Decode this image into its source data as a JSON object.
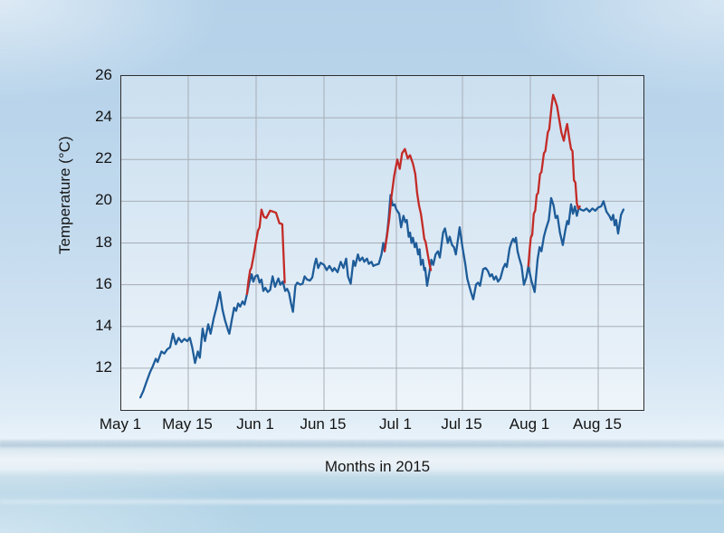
{
  "axes": {
    "y_label": "Temperature (°C)",
    "x_label": "Months in 2015"
  },
  "colors": {
    "blue_line": "#1e5c99",
    "red_line": "#c32b27",
    "grid": "#a8adb5",
    "frame": "#2e2e2e",
    "sky": "#b4d1e9",
    "water": "#b1d2e5"
  },
  "chart_data": {
    "type": "line",
    "title": "",
    "xlabel": "Months in 2015",
    "ylabel": "Temperature (°C)",
    "ylim": [
      10,
      26
    ],
    "y_tick_values": [
      26,
      24,
      22,
      20,
      18,
      16,
      14,
      12
    ],
    "x_tick_labels": [
      "May 1",
      "May 15",
      "Jun 1",
      "Jun 15",
      "Jul 1",
      "Jul 15",
      "Aug 1",
      "Aug 15"
    ],
    "x_tick_days": [
      0,
      14,
      31,
      45,
      61,
      75,
      92,
      106
    ],
    "x_unit": "days since May 1, 2015",
    "grid": true,
    "legend": false,
    "series": [
      {
        "name": "blue_series",
        "color": "#1e5c99",
        "points": [
          [
            4.0,
            10.6
          ],
          [
            4.6,
            10.9
          ],
          [
            5.2,
            11.3
          ],
          [
            6.0,
            11.8
          ],
          [
            6.6,
            12.1
          ],
          [
            7.2,
            12.45
          ],
          [
            7.6,
            12.3
          ],
          [
            8.4,
            12.8
          ],
          [
            9.0,
            12.7
          ],
          [
            9.6,
            12.9
          ],
          [
            10.2,
            13.0
          ],
          [
            10.8,
            13.65
          ],
          [
            11.4,
            13.15
          ],
          [
            12.0,
            13.45
          ],
          [
            12.6,
            13.25
          ],
          [
            13.2,
            13.4
          ],
          [
            13.8,
            13.3
          ],
          [
            14.4,
            13.45
          ],
          [
            15.0,
            13.0
          ],
          [
            15.7,
            12.25
          ],
          [
            16.4,
            12.8
          ],
          [
            16.9,
            12.5
          ],
          [
            17.6,
            13.9
          ],
          [
            18.2,
            13.3
          ],
          [
            19.0,
            14.1
          ],
          [
            19.6,
            13.65
          ],
          [
            20.4,
            14.4
          ],
          [
            21.0,
            14.85
          ],
          [
            21.9,
            15.65
          ],
          [
            22.6,
            14.8
          ],
          [
            23.2,
            14.3
          ],
          [
            24.0,
            13.8
          ],
          [
            24.3,
            13.65
          ],
          [
            24.9,
            14.3
          ],
          [
            25.5,
            14.9
          ],
          [
            26.0,
            14.75
          ],
          [
            26.5,
            15.1
          ],
          [
            27.0,
            14.95
          ],
          [
            27.6,
            15.2
          ],
          [
            28.1,
            15.05
          ],
          [
            28.7,
            15.55
          ],
          [
            29.3,
            16.1
          ],
          [
            29.9,
            16.5
          ],
          [
            30.3,
            16.15
          ],
          [
            30.8,
            16.4
          ],
          [
            31.3,
            16.45
          ],
          [
            31.7,
            16.1
          ],
          [
            32.1,
            16.25
          ],
          [
            32.5,
            15.7
          ],
          [
            32.9,
            15.85
          ],
          [
            33.4,
            15.65
          ],
          [
            33.9,
            15.75
          ],
          [
            34.4,
            16.4
          ],
          [
            34.9,
            15.9
          ],
          [
            35.6,
            16.3
          ],
          [
            36.0,
            16.0
          ],
          [
            36.5,
            16.15
          ],
          [
            37.0,
            15.7
          ],
          [
            37.4,
            15.8
          ],
          [
            37.8,
            15.6
          ],
          [
            38.2,
            15.1
          ],
          [
            38.6,
            14.7
          ],
          [
            39.1,
            15.95
          ],
          [
            39.5,
            16.1
          ],
          [
            40.1,
            16.0
          ],
          [
            40.6,
            16.05
          ],
          [
            41.0,
            16.4
          ],
          [
            41.5,
            16.25
          ],
          [
            42.1,
            16.2
          ],
          [
            42.6,
            16.35
          ],
          [
            43.1,
            17.0
          ],
          [
            43.4,
            17.25
          ],
          [
            43.8,
            16.8
          ],
          [
            44.3,
            17.05
          ],
          [
            45.0,
            16.95
          ],
          [
            45.6,
            16.7
          ],
          [
            46.2,
            16.9
          ],
          [
            46.9,
            16.65
          ],
          [
            47.3,
            16.8
          ],
          [
            48.0,
            16.6
          ],
          [
            48.7,
            17.1
          ],
          [
            49.3,
            16.8
          ],
          [
            49.9,
            17.25
          ],
          [
            50.3,
            16.4
          ],
          [
            50.9,
            16.05
          ],
          [
            51.5,
            17.15
          ],
          [
            51.9,
            16.9
          ],
          [
            52.5,
            17.45
          ],
          [
            52.9,
            17.15
          ],
          [
            53.5,
            17.3
          ],
          [
            53.9,
            17.1
          ],
          [
            54.5,
            17.25
          ],
          [
            54.9,
            17.0
          ],
          [
            55.5,
            17.1
          ],
          [
            55.9,
            16.9
          ],
          [
            56.4,
            16.95
          ],
          [
            57.1,
            17.0
          ],
          [
            57.7,
            17.45
          ],
          [
            58.1,
            18.0
          ],
          [
            58.4,
            17.6
          ],
          [
            59.0,
            18.55
          ],
          [
            59.3,
            19.2
          ],
          [
            59.7,
            20.3
          ],
          [
            60.2,
            19.8
          ],
          [
            60.6,
            19.85
          ],
          [
            61.0,
            19.6
          ],
          [
            61.6,
            19.4
          ],
          [
            62.0,
            18.75
          ],
          [
            62.5,
            19.3
          ],
          [
            62.9,
            19.0
          ],
          [
            63.2,
            19.1
          ],
          [
            63.6,
            18.3
          ],
          [
            63.9,
            18.5
          ],
          [
            64.2,
            18.0
          ],
          [
            64.5,
            18.25
          ],
          [
            64.9,
            17.8
          ],
          [
            65.2,
            18.0
          ],
          [
            65.6,
            17.45
          ],
          [
            65.9,
            17.7
          ],
          [
            66.2,
            16.95
          ],
          [
            66.6,
            17.2
          ],
          [
            66.9,
            16.7
          ],
          [
            67.1,
            16.8
          ],
          [
            67.5,
            15.95
          ],
          [
            68.0,
            16.6
          ],
          [
            68.4,
            17.2
          ],
          [
            68.8,
            16.95
          ],
          [
            69.3,
            17.45
          ],
          [
            69.8,
            17.6
          ],
          [
            70.2,
            17.3
          ],
          [
            70.9,
            18.5
          ],
          [
            71.3,
            18.7
          ],
          [
            71.9,
            18.0
          ],
          [
            72.3,
            18.3
          ],
          [
            72.8,
            17.9
          ],
          [
            73.2,
            17.8
          ],
          [
            73.6,
            17.45
          ],
          [
            74.4,
            18.75
          ],
          [
            75.0,
            17.8
          ],
          [
            75.7,
            17.0
          ],
          [
            76.2,
            16.3
          ],
          [
            76.6,
            16.0
          ],
          [
            77.2,
            15.6
          ],
          [
            77.7,
            15.3
          ],
          [
            78.4,
            16.0
          ],
          [
            78.9,
            16.1
          ],
          [
            79.4,
            15.95
          ],
          [
            80.2,
            16.75
          ],
          [
            80.8,
            16.8
          ],
          [
            81.4,
            16.65
          ],
          [
            81.9,
            16.4
          ],
          [
            82.4,
            16.5
          ],
          [
            82.9,
            16.25
          ],
          [
            83.4,
            16.4
          ],
          [
            83.9,
            16.15
          ],
          [
            84.5,
            16.3
          ],
          [
            85.2,
            16.8
          ],
          [
            85.7,
            17.0
          ],
          [
            86.1,
            16.85
          ],
          [
            86.8,
            17.75
          ],
          [
            87.3,
            18.05
          ],
          [
            87.7,
            18.2
          ],
          [
            88.1,
            18.05
          ],
          [
            88.4,
            18.25
          ],
          [
            88.8,
            17.6
          ],
          [
            89.2,
            17.3
          ],
          [
            89.8,
            16.9
          ],
          [
            90.4,
            16.0
          ],
          [
            91.0,
            16.35
          ],
          [
            91.5,
            16.9
          ],
          [
            92.2,
            16.2
          ],
          [
            92.9,
            15.65
          ],
          [
            93.5,
            17.2
          ],
          [
            93.9,
            17.8
          ],
          [
            94.3,
            17.6
          ],
          [
            94.8,
            18.3
          ],
          [
            95.2,
            18.65
          ],
          [
            95.8,
            19.1
          ],
          [
            96.3,
            20.15
          ],
          [
            96.8,
            19.8
          ],
          [
            97.2,
            19.2
          ],
          [
            97.6,
            19.3
          ],
          [
            98.1,
            18.5
          ],
          [
            98.7,
            17.9
          ],
          [
            99.2,
            18.6
          ],
          [
            99.6,
            19.05
          ],
          [
            99.9,
            18.9
          ],
          [
            100.4,
            19.85
          ],
          [
            100.8,
            19.4
          ],
          [
            101.2,
            19.75
          ],
          [
            101.6,
            19.3
          ],
          [
            102.0,
            19.7
          ],
          [
            102.4,
            19.6
          ],
          [
            103.0,
            19.55
          ],
          [
            103.6,
            19.65
          ],
          [
            104.2,
            19.5
          ],
          [
            104.8,
            19.65
          ],
          [
            105.4,
            19.55
          ],
          [
            106.0,
            19.7
          ],
          [
            106.6,
            19.75
          ],
          [
            107.1,
            20.0
          ],
          [
            107.7,
            19.5
          ],
          [
            108.3,
            19.3
          ],
          [
            108.7,
            19.1
          ],
          [
            109.1,
            19.35
          ],
          [
            109.4,
            18.85
          ],
          [
            109.7,
            19.1
          ],
          [
            110.1,
            18.45
          ],
          [
            110.7,
            19.35
          ],
          [
            111.2,
            19.6
          ]
        ]
      },
      {
        "name": "red_overlay_segment_1",
        "color": "#c32b27",
        "points": [
          [
            28.7,
            15.55
          ],
          [
            29.1,
            16.2
          ],
          [
            29.5,
            16.7
          ],
          [
            29.8,
            16.8
          ],
          [
            30.3,
            17.3
          ],
          [
            30.9,
            18.0
          ],
          [
            31.4,
            18.6
          ],
          [
            31.7,
            18.75
          ],
          [
            32.1,
            19.6
          ],
          [
            32.6,
            19.25
          ],
          [
            33.1,
            19.2
          ],
          [
            33.9,
            19.55
          ],
          [
            34.5,
            19.5
          ],
          [
            35.1,
            19.45
          ],
          [
            35.8,
            18.95
          ],
          [
            36.4,
            18.9
          ],
          [
            36.9,
            16.1
          ]
        ]
      },
      {
        "name": "red_overlay_segment_2",
        "color": "#c32b27",
        "points": [
          [
            58.4,
            17.6
          ],
          [
            58.9,
            18.3
          ],
          [
            59.4,
            19.1
          ],
          [
            59.9,
            20.2
          ],
          [
            60.5,
            21.2
          ],
          [
            61.2,
            22.0
          ],
          [
            61.7,
            21.55
          ],
          [
            62.2,
            22.3
          ],
          [
            62.8,
            22.5
          ],
          [
            63.4,
            22.05
          ],
          [
            63.9,
            22.2
          ],
          [
            64.5,
            21.8
          ],
          [
            65.0,
            21.3
          ],
          [
            65.4,
            20.4
          ],
          [
            65.8,
            19.8
          ],
          [
            66.2,
            19.4
          ],
          [
            66.6,
            18.75
          ],
          [
            66.9,
            18.2
          ],
          [
            67.2,
            18.05
          ],
          [
            67.7,
            17.4
          ],
          [
            68.0,
            17.0
          ],
          [
            68.3,
            16.7
          ]
        ]
      },
      {
        "name": "red_overlay_segment_3",
        "color": "#c32b27",
        "points": [
          [
            91.5,
            16.9
          ],
          [
            91.8,
            17.6
          ],
          [
            92.1,
            18.25
          ],
          [
            92.4,
            18.4
          ],
          [
            92.7,
            19.4
          ],
          [
            93.0,
            19.55
          ],
          [
            93.3,
            20.3
          ],
          [
            93.6,
            20.4
          ],
          [
            94.0,
            21.3
          ],
          [
            94.3,
            21.4
          ],
          [
            94.8,
            22.3
          ],
          [
            95.1,
            22.4
          ],
          [
            95.6,
            23.3
          ],
          [
            95.9,
            23.45
          ],
          [
            96.4,
            24.6
          ],
          [
            96.7,
            25.1
          ],
          [
            97.1,
            24.85
          ],
          [
            97.5,
            24.55
          ],
          [
            97.9,
            24.0
          ],
          [
            98.4,
            23.3
          ],
          [
            98.9,
            22.9
          ],
          [
            99.3,
            23.4
          ],
          [
            99.6,
            23.7
          ],
          [
            100.1,
            22.9
          ],
          [
            100.4,
            22.5
          ],
          [
            100.7,
            22.4
          ],
          [
            101.0,
            21.0
          ],
          [
            101.3,
            20.9
          ],
          [
            101.6,
            19.9
          ],
          [
            101.9,
            19.65
          ],
          [
            102.2,
            19.75
          ]
        ]
      }
    ]
  }
}
